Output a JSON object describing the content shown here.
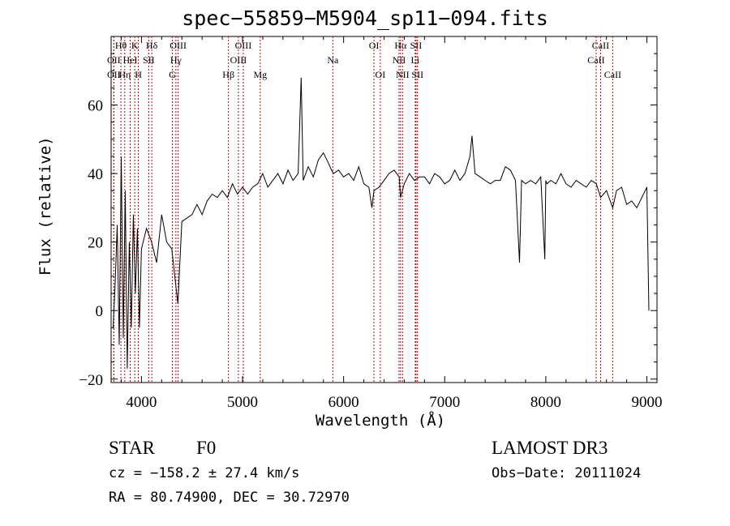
{
  "chart_data": {
    "type": "line",
    "title": "spec−55859−M5904_sp11−094.fits",
    "xlabel": "Wavelength (Å)",
    "ylabel": "Flux (relative)",
    "xlim": [
      3700,
      9100
    ],
    "ylim": [
      -21,
      80
    ],
    "xticks": [
      4000,
      5000,
      6000,
      7000,
      8000,
      9000
    ],
    "yticks": [
      -20,
      0,
      20,
      40,
      60
    ],
    "ytick_labels": [
      "−20",
      "0",
      "20",
      "40",
      "60"
    ],
    "series": [
      {
        "name": "flux",
        "x": [
          3720,
          3740,
          3760,
          3780,
          3800,
          3820,
          3840,
          3860,
          3880,
          3900,
          3920,
          3940,
          3960,
          3980,
          4000,
          4050,
          4100,
          4150,
          4200,
          4250,
          4300,
          4330,
          4360,
          4400,
          4450,
          4500,
          4550,
          4600,
          4650,
          4700,
          4750,
          4800,
          4850,
          4900,
          4950,
          5000,
          5050,
          5100,
          5150,
          5200,
          5250,
          5300,
          5350,
          5400,
          5450,
          5500,
          5550,
          5580,
          5600,
          5650,
          5700,
          5750,
          5800,
          5850,
          5880,
          5900,
          5950,
          6000,
          6050,
          6100,
          6150,
          6200,
          6250,
          6280,
          6300,
          6350,
          6400,
          6450,
          6500,
          6550,
          6563,
          6600,
          6650,
          6700,
          6750,
          6800,
          6850,
          6900,
          6950,
          7000,
          7050,
          7100,
          7150,
          7200,
          7250,
          7270,
          7300,
          7350,
          7400,
          7450,
          7500,
          7550,
          7600,
          7650,
          7700,
          7740,
          7760,
          7800,
          7850,
          7900,
          7950,
          7990,
          8000,
          8010,
          8050,
          8100,
          8150,
          8200,
          8250,
          8300,
          8350,
          8400,
          8450,
          8500,
          8542,
          8600,
          8662,
          8700,
          8750,
          8800,
          8850,
          8900,
          8950,
          9000,
          9020
        ],
        "y": [
          -5,
          8,
          25,
          -10,
          45,
          -8,
          35,
          -17,
          20,
          -5,
          28,
          5,
          24,
          -5,
          18,
          24,
          20,
          14,
          28,
          20,
          18,
          10,
          2,
          26,
          27,
          28,
          31,
          28,
          32,
          34,
          33,
          35,
          33,
          37,
          34,
          36,
          34,
          36,
          37,
          40,
          36,
          38,
          40,
          37,
          41,
          38,
          40,
          68,
          38,
          42,
          39,
          44,
          46,
          43,
          41,
          40,
          41,
          39,
          40,
          38,
          42,
          37,
          36,
          30,
          35,
          36,
          38,
          40,
          41,
          39,
          33,
          37,
          40,
          38,
          39,
          39,
          37,
          40,
          39,
          37,
          38,
          41,
          38,
          40,
          45,
          51,
          40,
          39,
          38,
          37,
          38,
          38,
          42,
          41,
          38,
          14,
          38,
          37,
          38,
          37,
          39,
          15,
          38,
          37,
          38,
          37,
          40,
          37,
          36,
          38,
          37,
          36,
          38,
          37,
          33,
          35,
          30,
          35,
          36,
          31,
          32,
          30,
          33,
          36,
          0
        ]
      }
    ],
    "spectral_lines": [
      {
        "label": "OII",
        "x": 3727,
        "row": 2
      },
      {
        "label": "Hθ",
        "x": 3797,
        "row": 1
      },
      {
        "label": "OII",
        "x": 3727,
        "row": 3
      },
      {
        "label": "Hη",
        "x": 3835,
        "row": 3
      },
      {
        "label": "HeI",
        "x": 3889,
        "row": 2
      },
      {
        "label": "K",
        "x": 3934,
        "row": 1
      },
      {
        "label": "H",
        "x": 3969,
        "row": 3
      },
      {
        "label": "SII",
        "x": 4072,
        "row": 2
      },
      {
        "label": "Hδ",
        "x": 4102,
        "row": 1
      },
      {
        "label": "G",
        "x": 4305,
        "row": 3
      },
      {
        "label": "Hγ",
        "x": 4341,
        "row": 2
      },
      {
        "label": "OIII",
        "x": 4363,
        "row": 1
      },
      {
        "label": "Hβ",
        "x": 4861,
        "row": 3
      },
      {
        "label": "OIII",
        "x": 4959,
        "row": 2
      },
      {
        "label": "OIII",
        "x": 5007,
        "row": 1
      },
      {
        "label": "Mg",
        "x": 5175,
        "row": 3
      },
      {
        "label": "Na",
        "x": 5893,
        "row": 2
      },
      {
        "label": "OI",
        "x": 6300,
        "row": 1
      },
      {
        "label": "OI",
        "x": 6363,
        "row": 3
      },
      {
        "label": "NII",
        "x": 6548,
        "row": 2
      },
      {
        "label": "Hα",
        "x": 6563,
        "row": 1
      },
      {
        "label": "NII",
        "x": 6583,
        "row": 3
      },
      {
        "label": "SII",
        "x": 6716,
        "row": 1
      },
      {
        "label": "Li",
        "x": 6708,
        "row": 2
      },
      {
        "label": "SII",
        "x": 6731,
        "row": 3
      },
      {
        "label": "CaII",
        "x": 8498,
        "row": 2
      },
      {
        "label": "CaII",
        "x": 8542,
        "row": 1
      },
      {
        "label": "CaII",
        "x": 8662,
        "row": 3
      }
    ],
    "line_color": "#cc0000",
    "grid": false
  },
  "info": {
    "object_class": "STAR",
    "subclass": "F0",
    "survey": "LAMOST DR3",
    "cz": "cz = −158.2 ± 27.4 km/s",
    "obs_date": "Obs−Date: 20111024",
    "coords": "RA =  80.74900, DEC =  30.72970"
  }
}
